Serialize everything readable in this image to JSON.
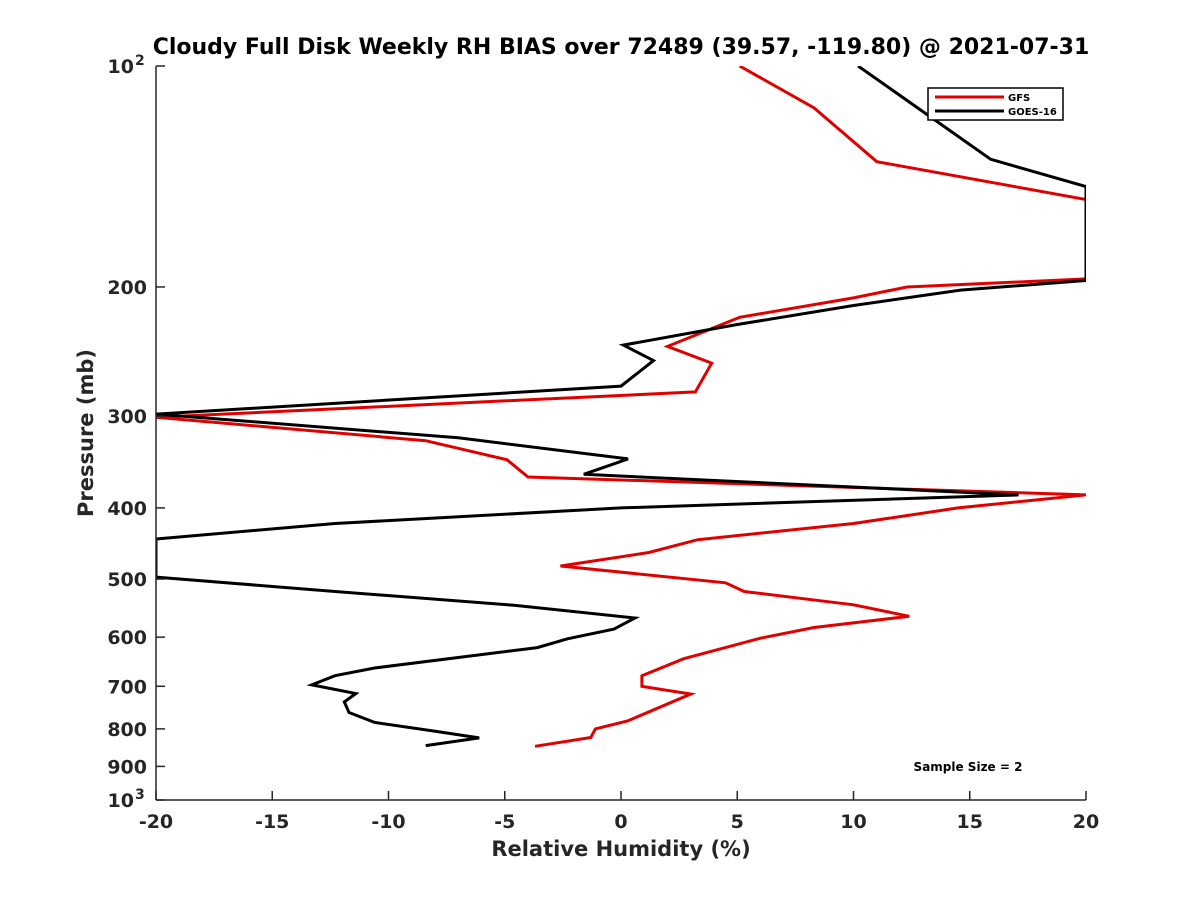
{
  "chart_data": {
    "type": "line",
    "title": "Cloudy Full Disk Weekly RH BIAS over 72489 (39.57, -119.80) @ 2021-07-31",
    "xlabel": "Relative Humidity (%)",
    "ylabel": "Pressure (mb)",
    "xlim": [
      -20,
      20
    ],
    "ylim": [
      100,
      1000
    ],
    "y_scale": "log",
    "y_reversed": true,
    "grid": false,
    "legend_position": "top-right",
    "x_ticks": [
      -20,
      -15,
      -10,
      -5,
      0,
      5,
      10,
      15,
      20
    ],
    "y_ticks": [
      {
        "value": 100,
        "label": "10",
        "sup": "2"
      },
      {
        "value": 200,
        "label": "200",
        "sup": ""
      },
      {
        "value": 300,
        "label": "300",
        "sup": ""
      },
      {
        "value": 400,
        "label": "400",
        "sup": ""
      },
      {
        "value": 500,
        "label": "500",
        "sup": ""
      },
      {
        "value": 600,
        "label": "600",
        "sup": ""
      },
      {
        "value": 700,
        "label": "700",
        "sup": ""
      },
      {
        "value": 800,
        "label": "800",
        "sup": ""
      },
      {
        "value": 900,
        "label": "900",
        "sup": ""
      },
      {
        "value": 1000,
        "label": "10",
        "sup": "3"
      }
    ],
    "annotation": "Sample Size = 2",
    "series": [
      {
        "name": "GFS",
        "color": "#e00000",
        "points": [
          [
            5.1,
            100
          ],
          [
            8.3,
            114
          ],
          [
            11.0,
            135
          ],
          [
            20,
            152
          ],
          [
            20,
            195
          ],
          [
            12.3,
            200
          ],
          [
            10.0,
            207
          ],
          [
            5.1,
            220
          ],
          [
            2.0,
            241
          ],
          [
            3.9,
            254
          ],
          [
            3.2,
            278
          ],
          [
            -20,
            301
          ],
          [
            -8.4,
            324
          ],
          [
            -4.9,
            344
          ],
          [
            -4.0,
            363
          ],
          [
            20,
            384
          ],
          [
            14.5,
            400
          ],
          [
            10.0,
            420
          ],
          [
            3.3,
            442
          ],
          [
            1.2,
            460
          ],
          [
            -2.6,
            480
          ],
          [
            4.5,
            506
          ],
          [
            5.3,
            520
          ],
          [
            10.0,
            542
          ],
          [
            12.4,
            562
          ],
          [
            8.3,
            582
          ],
          [
            6.0,
            602
          ],
          [
            2.7,
            642
          ],
          [
            0.9,
            677
          ],
          [
            0.9,
            700
          ],
          [
            3.0,
            717
          ],
          [
            0.3,
            780
          ],
          [
            -1.1,
            800
          ],
          [
            -1.3,
            822
          ],
          [
            -3.7,
            845
          ]
        ]
      },
      {
        "name": "GOES-16",
        "color": "#000000",
        "points": [
          [
            10.2,
            100
          ],
          [
            15.9,
            134
          ],
          [
            20,
            146
          ],
          [
            20,
            196
          ],
          [
            14.6,
            202
          ],
          [
            10.0,
            212
          ],
          [
            5.0,
            225
          ],
          [
            0.1,
            240
          ],
          [
            1.4,
            252
          ],
          [
            0.0,
            273
          ],
          [
            -20,
            298
          ],
          [
            -7.0,
            321
          ],
          [
            0.3,
            343
          ],
          [
            -1.6,
            360
          ],
          [
            17.1,
            384
          ],
          [
            0.0,
            400
          ],
          [
            -12.3,
            420
          ],
          [
            -20,
            441
          ],
          [
            -20,
            497
          ],
          [
            -12.3,
            520
          ],
          [
            -4.6,
            543
          ],
          [
            0.6,
            565
          ],
          [
            -0.3,
            585
          ],
          [
            -2.3,
            603
          ],
          [
            -3.6,
            620
          ],
          [
            -10.6,
            661
          ],
          [
            -12.3,
            677
          ],
          [
            -13.3,
            697
          ],
          [
            -11.4,
            716
          ],
          [
            -11.9,
            735
          ],
          [
            -11.7,
            760
          ],
          [
            -10.6,
            784
          ],
          [
            -8.1,
            805
          ],
          [
            -6.1,
            823
          ],
          [
            -8.4,
            843
          ]
        ]
      }
    ]
  }
}
